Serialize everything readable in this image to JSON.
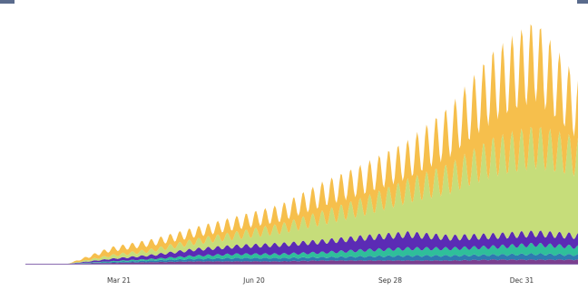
{
  "chart_data": {
    "type": "area",
    "stacked": true,
    "title": "",
    "xlabel": "",
    "ylabel": "",
    "x_ticks": [
      "Mar 21",
      "Jun 20",
      "Sep 28",
      "Dec 31"
    ],
    "x_range": [
      "Jan 2020",
      "Jan 2021"
    ],
    "y_ticks": [],
    "grid": false,
    "legend": "none",
    "daily_weekly_oscillation": true,
    "series": [
      {
        "color": "#7b3f8f",
        "values": [
          0,
          0,
          1,
          2,
          3,
          3,
          3,
          4,
          4,
          4,
          4,
          5,
          5,
          5
        ]
      },
      {
        "color": "#2e7bb0",
        "values": [
          0,
          0,
          1,
          2,
          3,
          4,
          4,
          4,
          5,
          6,
          6,
          6,
          7,
          6
        ]
      },
      {
        "color": "#2fbf9a",
        "values": [
          0,
          0,
          1,
          2,
          4,
          5,
          5,
          6,
          8,
          9,
          9,
          10,
          12,
          10
        ]
      },
      {
        "color": "#5b2bb5",
        "values": [
          0,
          0,
          3,
          5,
          8,
          10,
          12,
          14,
          16,
          18,
          14,
          14,
          14,
          14
        ]
      },
      {
        "color": "#c6dd7a",
        "values": [
          0,
          0,
          4,
          6,
          10,
          14,
          20,
          30,
          40,
          55,
          75,
          100,
          110,
          100
        ]
      },
      {
        "color": "#f6bf4c",
        "values": [
          0,
          0,
          8,
          10,
          12,
          16,
          20,
          30,
          35,
          40,
          60,
          90,
          110,
          60
        ]
      }
    ]
  },
  "decor": {
    "top_corner_color": "#5a6b8c"
  }
}
